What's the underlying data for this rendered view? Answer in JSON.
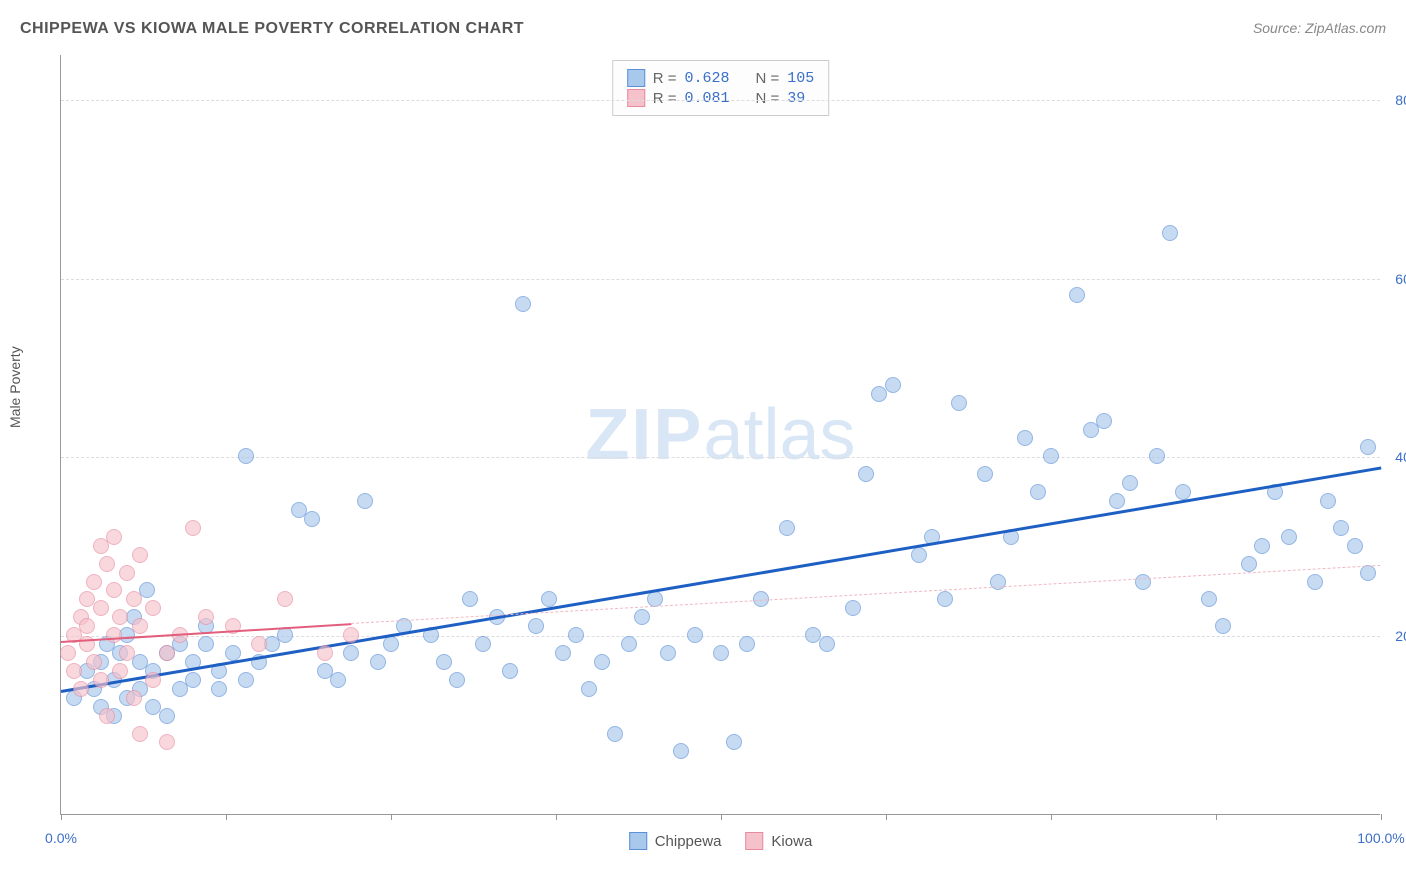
{
  "title": "CHIPPEWA VS KIOWA MALE POVERTY CORRELATION CHART",
  "source_label": "Source: ZipAtlas.com",
  "y_axis_label": "Male Poverty",
  "watermark": {
    "bold": "ZIP",
    "rest": "atlas"
  },
  "chart": {
    "type": "scatter",
    "xlim": [
      0,
      100
    ],
    "ylim": [
      0,
      85
    ],
    "x_ticks": [
      0,
      12.5,
      25,
      37.5,
      50,
      62.5,
      75,
      87.5,
      100
    ],
    "x_tick_labels": {
      "0": "0.0%",
      "100": "100.0%"
    },
    "y_gridlines": [
      20,
      40,
      60,
      80
    ],
    "y_tick_labels": {
      "20": "20.0%",
      "40": "40.0%",
      "60": "60.0%",
      "80": "80.0%"
    },
    "grid_color": "#dddddd",
    "axis_color": "#999999",
    "background_color": "#ffffff",
    "point_radius": 8,
    "point_opacity": 0.65,
    "series": [
      {
        "name": "Chippewa",
        "fill_color": "#a8c8ec",
        "stroke_color": "#5b8fd6",
        "R": "0.628",
        "N": "105",
        "trend": {
          "x1": 0,
          "y1": 14,
          "x2": 100,
          "y2": 39,
          "color": "#1e5fc4",
          "width": 3,
          "dash": false
        },
        "points": [
          [
            1,
            13
          ],
          [
            2,
            16
          ],
          [
            2.5,
            14
          ],
          [
            3,
            12
          ],
          [
            3,
            17
          ],
          [
            3.5,
            19
          ],
          [
            4,
            11
          ],
          [
            4,
            15
          ],
          [
            4.5,
            18
          ],
          [
            5,
            13
          ],
          [
            5,
            20
          ],
          [
            5.5,
            22
          ],
          [
            6,
            14
          ],
          [
            6,
            17
          ],
          [
            6.5,
            25
          ],
          [
            7,
            12
          ],
          [
            7,
            16
          ],
          [
            8,
            18
          ],
          [
            8,
            11
          ],
          [
            9,
            19
          ],
          [
            9,
            14
          ],
          [
            10,
            15
          ],
          [
            10,
            17
          ],
          [
            11,
            19
          ],
          [
            11,
            21
          ],
          [
            12,
            16
          ],
          [
            12,
            14
          ],
          [
            13,
            18
          ],
          [
            14,
            40
          ],
          [
            14,
            15
          ],
          [
            15,
            17
          ],
          [
            16,
            19
          ],
          [
            17,
            20
          ],
          [
            18,
            34
          ],
          [
            19,
            33
          ],
          [
            20,
            16
          ],
          [
            21,
            15
          ],
          [
            22,
            18
          ],
          [
            23,
            35
          ],
          [
            24,
            17
          ],
          [
            25,
            19
          ],
          [
            26,
            21
          ],
          [
            28,
            20
          ],
          [
            29,
            17
          ],
          [
            30,
            15
          ],
          [
            31,
            24
          ],
          [
            32,
            19
          ],
          [
            33,
            22
          ],
          [
            34,
            16
          ],
          [
            35,
            57
          ],
          [
            36,
            21
          ],
          [
            37,
            24
          ],
          [
            38,
            18
          ],
          [
            39,
            20
          ],
          [
            40,
            14
          ],
          [
            41,
            17
          ],
          [
            42,
            9
          ],
          [
            43,
            19
          ],
          [
            44,
            22
          ],
          [
            45,
            24
          ],
          [
            46,
            18
          ],
          [
            47,
            7
          ],
          [
            48,
            20
          ],
          [
            50,
            18
          ],
          [
            51,
            8
          ],
          [
            52,
            19
          ],
          [
            53,
            24
          ],
          [
            55,
            32
          ],
          [
            57,
            20
          ],
          [
            58,
            19
          ],
          [
            60,
            23
          ],
          [
            61,
            38
          ],
          [
            62,
            47
          ],
          [
            63,
            48
          ],
          [
            65,
            29
          ],
          [
            66,
            31
          ],
          [
            67,
            24
          ],
          [
            68,
            46
          ],
          [
            70,
            38
          ],
          [
            71,
            26
          ],
          [
            72,
            31
          ],
          [
            73,
            42
          ],
          [
            74,
            36
          ],
          [
            75,
            40
          ],
          [
            77,
            58
          ],
          [
            78,
            43
          ],
          [
            79,
            44
          ],
          [
            80,
            35
          ],
          [
            81,
            37
          ],
          [
            82,
            26
          ],
          [
            83,
            40
          ],
          [
            84,
            65
          ],
          [
            85,
            36
          ],
          [
            87,
            24
          ],
          [
            88,
            21
          ],
          [
            90,
            28
          ],
          [
            91,
            30
          ],
          [
            92,
            36
          ],
          [
            93,
            31
          ],
          [
            95,
            26
          ],
          [
            96,
            35
          ],
          [
            97,
            32
          ],
          [
            98,
            30
          ],
          [
            99,
            27
          ],
          [
            99,
            41
          ]
        ]
      },
      {
        "name": "Kiowa",
        "fill_color": "#f5c2cb",
        "stroke_color": "#e88ba0",
        "R": "0.081",
        "N": "39",
        "trend_solid": {
          "x1": 0,
          "y1": 19.5,
          "x2": 22,
          "y2": 21.5,
          "color": "#e35d7c",
          "width": 2
        },
        "trend_dash": {
          "x1": 22,
          "y1": 21.5,
          "x2": 100,
          "y2": 28,
          "color": "#f0b8c2",
          "width": 1.5
        },
        "points": [
          [
            0.5,
            18
          ],
          [
            1,
            20
          ],
          [
            1,
            16
          ],
          [
            1.5,
            22
          ],
          [
            1.5,
            14
          ],
          [
            2,
            24
          ],
          [
            2,
            19
          ],
          [
            2,
            21
          ],
          [
            2.5,
            17
          ],
          [
            2.5,
            26
          ],
          [
            3,
            15
          ],
          [
            3,
            23
          ],
          [
            3,
            30
          ],
          [
            3.5,
            11
          ],
          [
            3.5,
            28
          ],
          [
            4,
            20
          ],
          [
            4,
            25
          ],
          [
            4,
            31
          ],
          [
            4.5,
            16
          ],
          [
            4.5,
            22
          ],
          [
            5,
            18
          ],
          [
            5,
            27
          ],
          [
            5.5,
            13
          ],
          [
            5.5,
            24
          ],
          [
            6,
            9
          ],
          [
            6,
            21
          ],
          [
            6,
            29
          ],
          [
            7,
            15
          ],
          [
            7,
            23
          ],
          [
            8,
            18
          ],
          [
            8,
            8
          ],
          [
            9,
            20
          ],
          [
            10,
            32
          ],
          [
            11,
            22
          ],
          [
            13,
            21
          ],
          [
            15,
            19
          ],
          [
            17,
            24
          ],
          [
            20,
            18
          ],
          [
            22,
            20
          ]
        ]
      }
    ]
  },
  "legend_box": {
    "rows": [
      {
        "swatch_fill": "#a8c8ec",
        "swatch_stroke": "#5b8fd6",
        "r_label": "R =",
        "r_val": "0.628",
        "n_label": "N =",
        "n_val": "105"
      },
      {
        "swatch_fill": "#f5c2cb",
        "swatch_stroke": "#e88ba0",
        "r_label": "R =",
        "r_val": "0.081",
        "n_label": "N =",
        "n_val": " 39"
      }
    ]
  },
  "bottom_legend": [
    {
      "swatch_fill": "#a8c8ec",
      "swatch_stroke": "#5b8fd6",
      "label": "Chippewa"
    },
    {
      "swatch_fill": "#f5c2cb",
      "swatch_stroke": "#e88ba0",
      "label": "Kiowa"
    }
  ]
}
